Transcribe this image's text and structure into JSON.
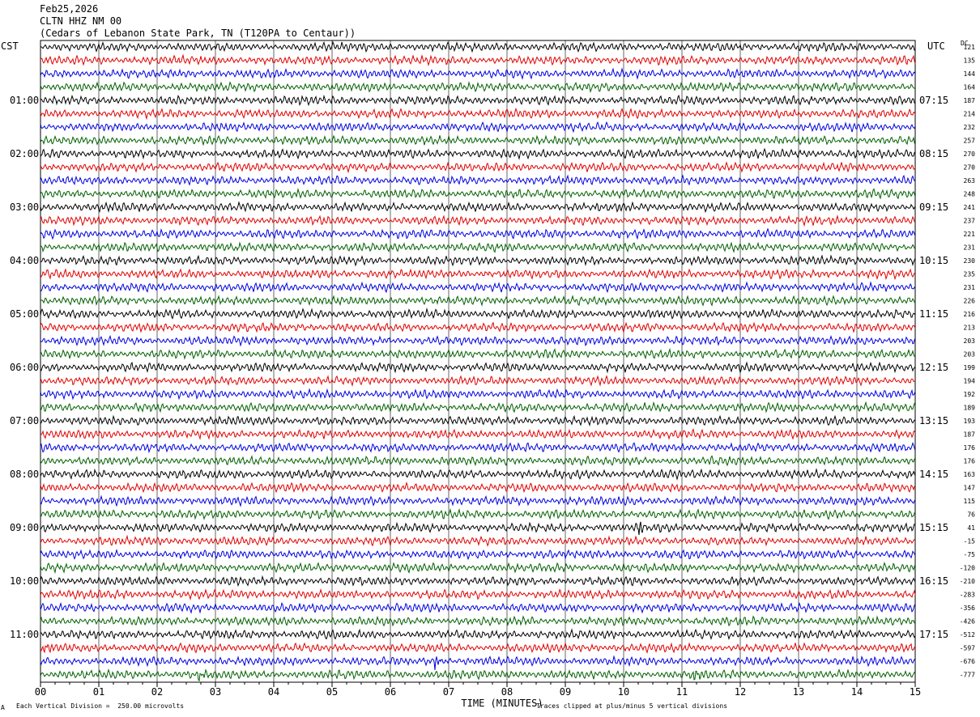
{
  "header": {
    "date": "Feb25,2026",
    "station": "CLTN HHZ NM 00",
    "location": "(Cedars of Lebanon State Park, TN (T120PA to Centaur))"
  },
  "left_tz": "CST",
  "right_tz": "UTC",
  "dc_label": "DC",
  "chart_data": {
    "type": "line",
    "title": "CLTN HHZ NM 00",
    "xlabel": "TIME (MINUTES)",
    "x_range_minutes": [
      0,
      15
    ],
    "x_tick_labels": [
      "00",
      "01",
      "02",
      "03",
      "04",
      "05",
      "06",
      "07",
      "08",
      "09",
      "10",
      "11",
      "12",
      "13",
      "14",
      "15"
    ],
    "row_count": 48,
    "rows_per_hour": 4,
    "trace_colors": [
      "#000000",
      "#e00000",
      "#0000e0",
      "#006000"
    ],
    "grid": true,
    "left_hour_labels": [
      "01:00",
      "02:00",
      "03:00",
      "04:00",
      "05:00",
      "06:00",
      "07:00",
      "08:00",
      "09:00",
      "10:00",
      "11:00"
    ],
    "right_hour_labels": [
      "07:15",
      "08:15",
      "09:15",
      "10:15",
      "11:15",
      "12:15",
      "13:15",
      "14:15",
      "15:15",
      "16:15",
      "17:15"
    ],
    "hour_label_row_indices": [
      4,
      8,
      12,
      16,
      20,
      24,
      28,
      32,
      36,
      40,
      44
    ],
    "dc_offsets": [
      121,
      135,
      144,
      164,
      187,
      214,
      232,
      257,
      270,
      270,
      263,
      248,
      241,
      237,
      221,
      231,
      230,
      235,
      231,
      226,
      216,
      213,
      203,
      203,
      199,
      194,
      192,
      189,
      193,
      187,
      176,
      176,
      163,
      147,
      115,
      76,
      41,
      -15,
      -75,
      -120,
      -210,
      -283,
      -356,
      -426,
      -512,
      -597,
      -676,
      -777
    ],
    "events": [
      {
        "row": 36,
        "minute": 10.25,
        "type": "spike"
      },
      {
        "row": 45,
        "minute": 0.05,
        "type": "spike"
      },
      {
        "row": 46,
        "minute": 6.75,
        "type": "spike"
      },
      {
        "row": 47,
        "minute": 2.7,
        "type": "spike"
      },
      {
        "row": 47,
        "minute": 11.2,
        "type": "spike"
      }
    ]
  },
  "footer": {
    "scale_note": "Each Vertical Division =  250.00 microvolts",
    "clip_note": "Traces clipped at plus/minus 5 vertical divisions",
    "corner_mark": "A"
  }
}
